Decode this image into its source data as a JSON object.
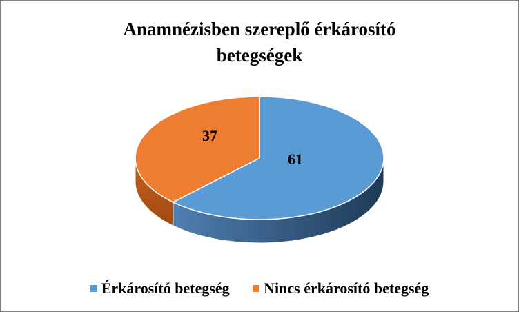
{
  "chart_data": {
    "type": "pie",
    "title_lines": [
      "Anamnézisben szereplő érkárosító",
      "betegségek"
    ],
    "slices": [
      {
        "label": "Érkárosító betegség",
        "value": 61,
        "color": "#5b9bd5"
      },
      {
        "label": "Nincs érkárosító betegség",
        "value": 37,
        "color": "#ed7d31"
      }
    ],
    "legend_position": "bottom",
    "style": "3d"
  }
}
